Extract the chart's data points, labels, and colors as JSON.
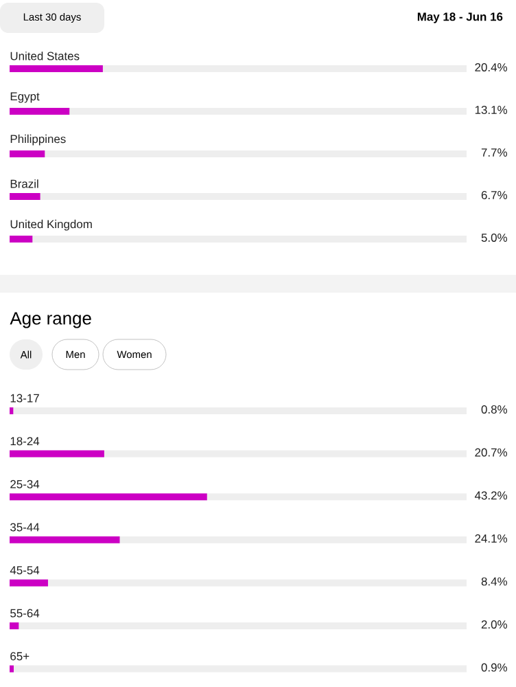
{
  "chart_data": [
    {
      "type": "bar",
      "orientation": "horizontal",
      "categories": [
        "United States",
        "Egypt",
        "Philippines",
        "Brazil",
        "United Kingdom"
      ],
      "values": [
        20.4,
        13.1,
        7.7,
        6.7,
        5.0
      ],
      "value_labels": [
        "20.4%",
        "13.1%",
        "7.7%",
        "6.7%",
        "5.0%"
      ],
      "color": "#cc00c4",
      "xlim": [
        0,
        100
      ],
      "tick_labels": "y",
      "annotations": [
        "Last 30 days",
        "May 18 - Jun 16"
      ]
    },
    {
      "type": "bar",
      "orientation": "horizontal",
      "title": "Age range",
      "categories": [
        "13-17",
        "18-24",
        "25-34",
        "35-44",
        "45-54",
        "55-64",
        "65+"
      ],
      "values": [
        0.8,
        20.7,
        43.2,
        24.1,
        8.4,
        2.0,
        0.9
      ],
      "value_labels": [
        "0.8%",
        "20.7%",
        "43.2%",
        "24.1%",
        "8.4%",
        "2.0%",
        "0.9%"
      ],
      "color": "#cc00c4",
      "xlim": [
        0,
        100
      ],
      "tick_labels": "y",
      "annotations": [
        "All",
        "Men",
        "Women"
      ]
    }
  ]
}
